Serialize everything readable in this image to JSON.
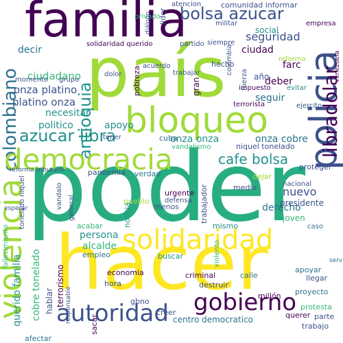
{
  "background": "#ffffff",
  "palette": {
    "purple": "#440154",
    "indigo": "#3b518b",
    "blue": "#2c728e",
    "teal": "#21918c",
    "green": "#27ad81",
    "emerald": "#35b779",
    "lime": "#a0da39",
    "yellow": "#fde725"
  },
  "words": {
    "poder": "poder",
    "hacer": "hacer",
    "pais": "país",
    "familia": "familia",
    "bloqueo": "bloqueo",
    "policia": "policia",
    "solidaridad": "solidaridad",
    "democracia": "democracia",
    "violencia": "violencia",
    "gobierno": "gobierno",
    "autoridad": "autoridad",
    "bolsa_azucar": "bolsa azucar",
    "azucar_libra": "azucar libra",
    "colombiano": "colombiano",
    "cafe_bolsa": "cafe bolsa",
    "libra_dolar": "libradolar",
    "seguridad": "seguridad",
    "ciudadano": "ciudadano",
    "platino_onza": "platino onza",
    "onza_platino": "onza platino",
    "necesitar": "necesitar",
    "politico": "politico",
    "antioquia": "antioquia",
    "apoyo": "apoyo",
    "onza_onza": "onza onza",
    "onza_cobre": "onza cobre",
    "niquel_tonelado": "niquel tonelado",
    "reforma_tributario": "reforma tributario",
    "centro_democratico": "centro democratico",
    "derecho": "derecho",
    "nuevo": "nuevo",
    "nacional": "nacional",
    "presidente": "presidente",
    "joven": "joven",
    "persona": "persona",
    "alcalde": "alcalde",
    "empleo": "empleo",
    "economia": "economia",
    "hora": "hora",
    "criminal": "criminal",
    "calle": "calle",
    "mismo": "mismo",
    "ciudad": "ciudad",
    "social": "social",
    "deber": "deber",
    "seguir": "seguir",
    "farc": "farc",
    "hecho": "hecho",
    "comunidad_informar": "comunidad informar",
    "terrorista": "terrorista",
    "impuesto": "impuesto",
    "decir": "decir",
    "cuba": "cuba",
    "proteger": "proteger",
    "gbno": "gbno",
    "buscar": "buscar",
    "millon": "millón",
    "destruir": "destruir",
    "responsable": "responsable",
    "sacar": "sacar",
    "afectar": "afectar",
    "parte": "parte",
    "proyecto": "proyecto",
    "protesta": "protesta",
    "creer": "creer",
    "apoyar": "apoyar",
    "llegar": "llegar",
    "trabajo": "trabajo",
    "querer": "querer",
    "medio": "medio",
    "verdad": "verdad",
    "esperar": "esperar",
    "general": "general",
    "vandalo": "vandalo",
    "noticia": "noticia",
    "trabajador": "trabajador",
    "defensa": "defensa",
    "urgente": "urgente",
    "pueblo": "pueblo",
    "menos": "menos",
    "acabar": "acabar",
    "violento": "violento",
    "pandemia": "pandemia",
    "dejar": "dejar",
    "servicio": "servicio",
    "caso": "caso",
    "empresa": "empresa",
    "ano": "año",
    "grupo": "grupo",
    "momento": "momento",
    "fallecimiento": "fallecimiento",
    "tonelado_niquel": "tonelado niquel",
    "querido_familia": "querido familia",
    "cobre_tonelado": "cobre tonelado",
    "terrorismo": "terrorismo",
    "hablar": "hablar",
    "vandalismo": "vandalismo",
    "ejercito": "ejercito",
    "solidaridad_querido": "solidaridad querido",
    "partido": "partido",
    "siempre": "siempre",
    "militar": "militar",
    "tener": "tener",
    "acuerdo": "acuerdo",
    "dolor": "dolor",
    "pobreza": "pobreza",
    "gran": "gran",
    "trabajar": "trabajar",
    "evitar": "evitar",
    "colombia": "colombia",
    "atencion": "atencion",
    "lider": "lider",
    "privado": "privado",
    "reforma": "reforma",
    "dialogo": "diálogo",
    "fuerza": "fuerza",
    "venezuela": "venezuela"
  }
}
